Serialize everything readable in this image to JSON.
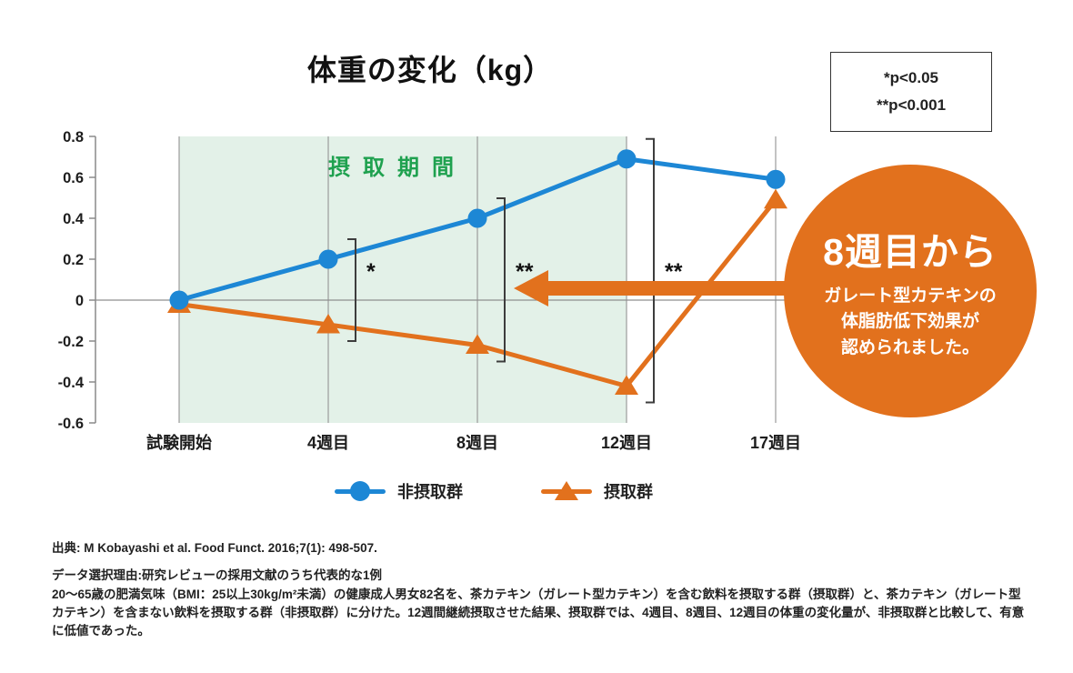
{
  "title": "体重の変化（kg）",
  "pvalue_box": {
    "line1": "*p<0.05",
    "line2": "**p<0.001"
  },
  "chart_data": {
    "type": "line",
    "categories": [
      "試験開始",
      "4週目",
      "8週目",
      "12週目",
      "17週目"
    ],
    "series": [
      {
        "name": "非摂取群",
        "marker": "circle",
        "color": "#1d87d5",
        "values": [
          0,
          0.2,
          0.4,
          0.69,
          0.59
        ]
      },
      {
        "name": "摂取群",
        "marker": "triangle",
        "color": "#e2711d",
        "values": [
          -0.02,
          -0.12,
          -0.22,
          -0.42,
          0.49
        ]
      }
    ],
    "ylabel": "体重の変化（kg）",
    "ylim": [
      -0.6,
      0.8
    ],
    "yticks": [
      0.8,
      0.6,
      0.4,
      0.2,
      0,
      -0.2,
      -0.4,
      -0.6
    ],
    "grid": "vertical-category-lines",
    "legend_position": "bottom",
    "band": {
      "label": "摂取期間",
      "from": "試験開始",
      "to": "12週目",
      "fill": "#e3f1e8",
      "label_color": "#1fa14f"
    },
    "significance": [
      {
        "at": "4週目",
        "label": "*"
      },
      {
        "at": "8週目",
        "label": "**"
      },
      {
        "at": "12週目",
        "label": "**"
      }
    ]
  },
  "callout": {
    "headline": "8週目から",
    "body_lines": [
      "ガレート型カテキンの",
      "体脂肪低下効果が",
      "認められました。"
    ],
    "bg_color": "#e2711d"
  },
  "legend": [
    {
      "label": "非摂取群",
      "color": "#1d87d5",
      "marker": "circle"
    },
    {
      "label": "摂取群",
      "color": "#e2711d",
      "marker": "triangle"
    }
  ],
  "footer": {
    "source": "出典: M Kobayashi et al. Food Funct. 2016;7(1): 498-507.",
    "selection_reason": "データ選択理由:研究レビューの採用文献のうち代表的な1例",
    "description": "20～65歳の肥満気味（BMI：25以上30kg/m²未満）の健康成人男女82名を、茶カテキン（ガレート型カテキン）を含む飲料を摂取する群（摂取群）と、茶カテキン（ガレート型カテキン）を含まない飲料を摂取する群（非摂取群）に分けた。12週間継続摂取させた結果、摂取群では、4週目、8週目、12週目の体重の変化量が、非摂取群と比較して、有意に低値であった。"
  }
}
